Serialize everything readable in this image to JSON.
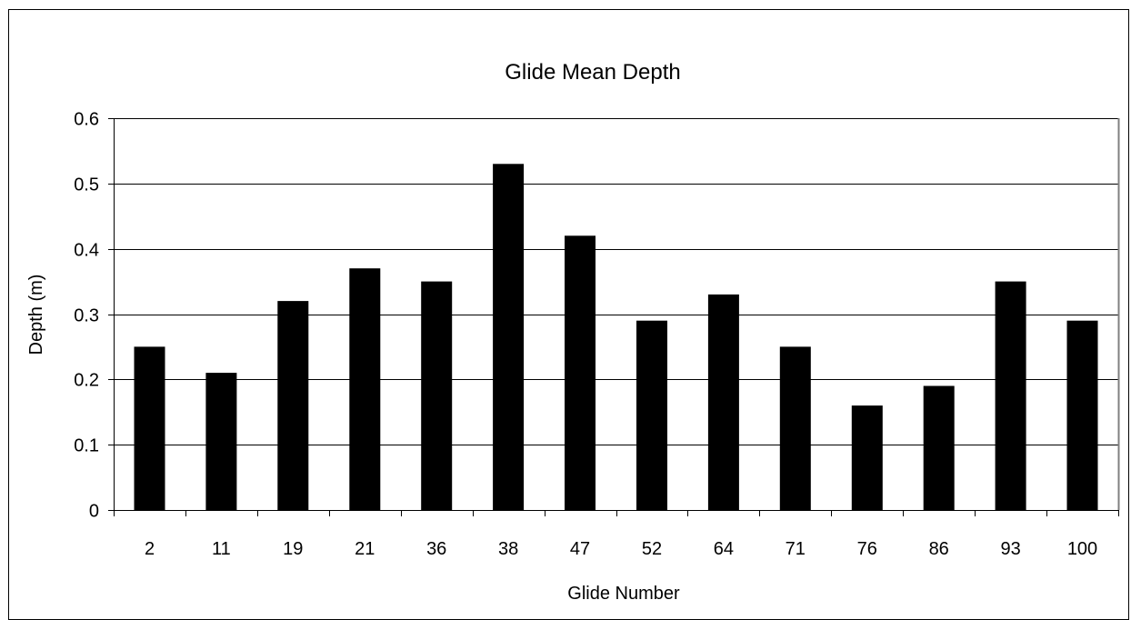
{
  "chart_data": {
    "type": "bar",
    "title": "Glide Mean Depth",
    "xlabel": "Glide Number",
    "ylabel": "Depth (m)",
    "categories": [
      "2",
      "11",
      "19",
      "21",
      "36",
      "38",
      "47",
      "52",
      "64",
      "71",
      "76",
      "86",
      "93",
      "100"
    ],
    "values": [
      0.25,
      0.21,
      0.32,
      0.37,
      0.35,
      0.53,
      0.42,
      0.29,
      0.33,
      0.25,
      0.16,
      0.19,
      0.35,
      0.29
    ],
    "ylim": [
      0,
      0.6
    ],
    "yticks": [
      "0",
      "0.1",
      "0.2",
      "0.3",
      "0.4",
      "0.5",
      "0.6"
    ],
    "grid": true,
    "legend": "none",
    "colors": {
      "bar": "#000000",
      "grid": "#000000",
      "plot_border": "#808080",
      "background": "#ffffff"
    }
  }
}
